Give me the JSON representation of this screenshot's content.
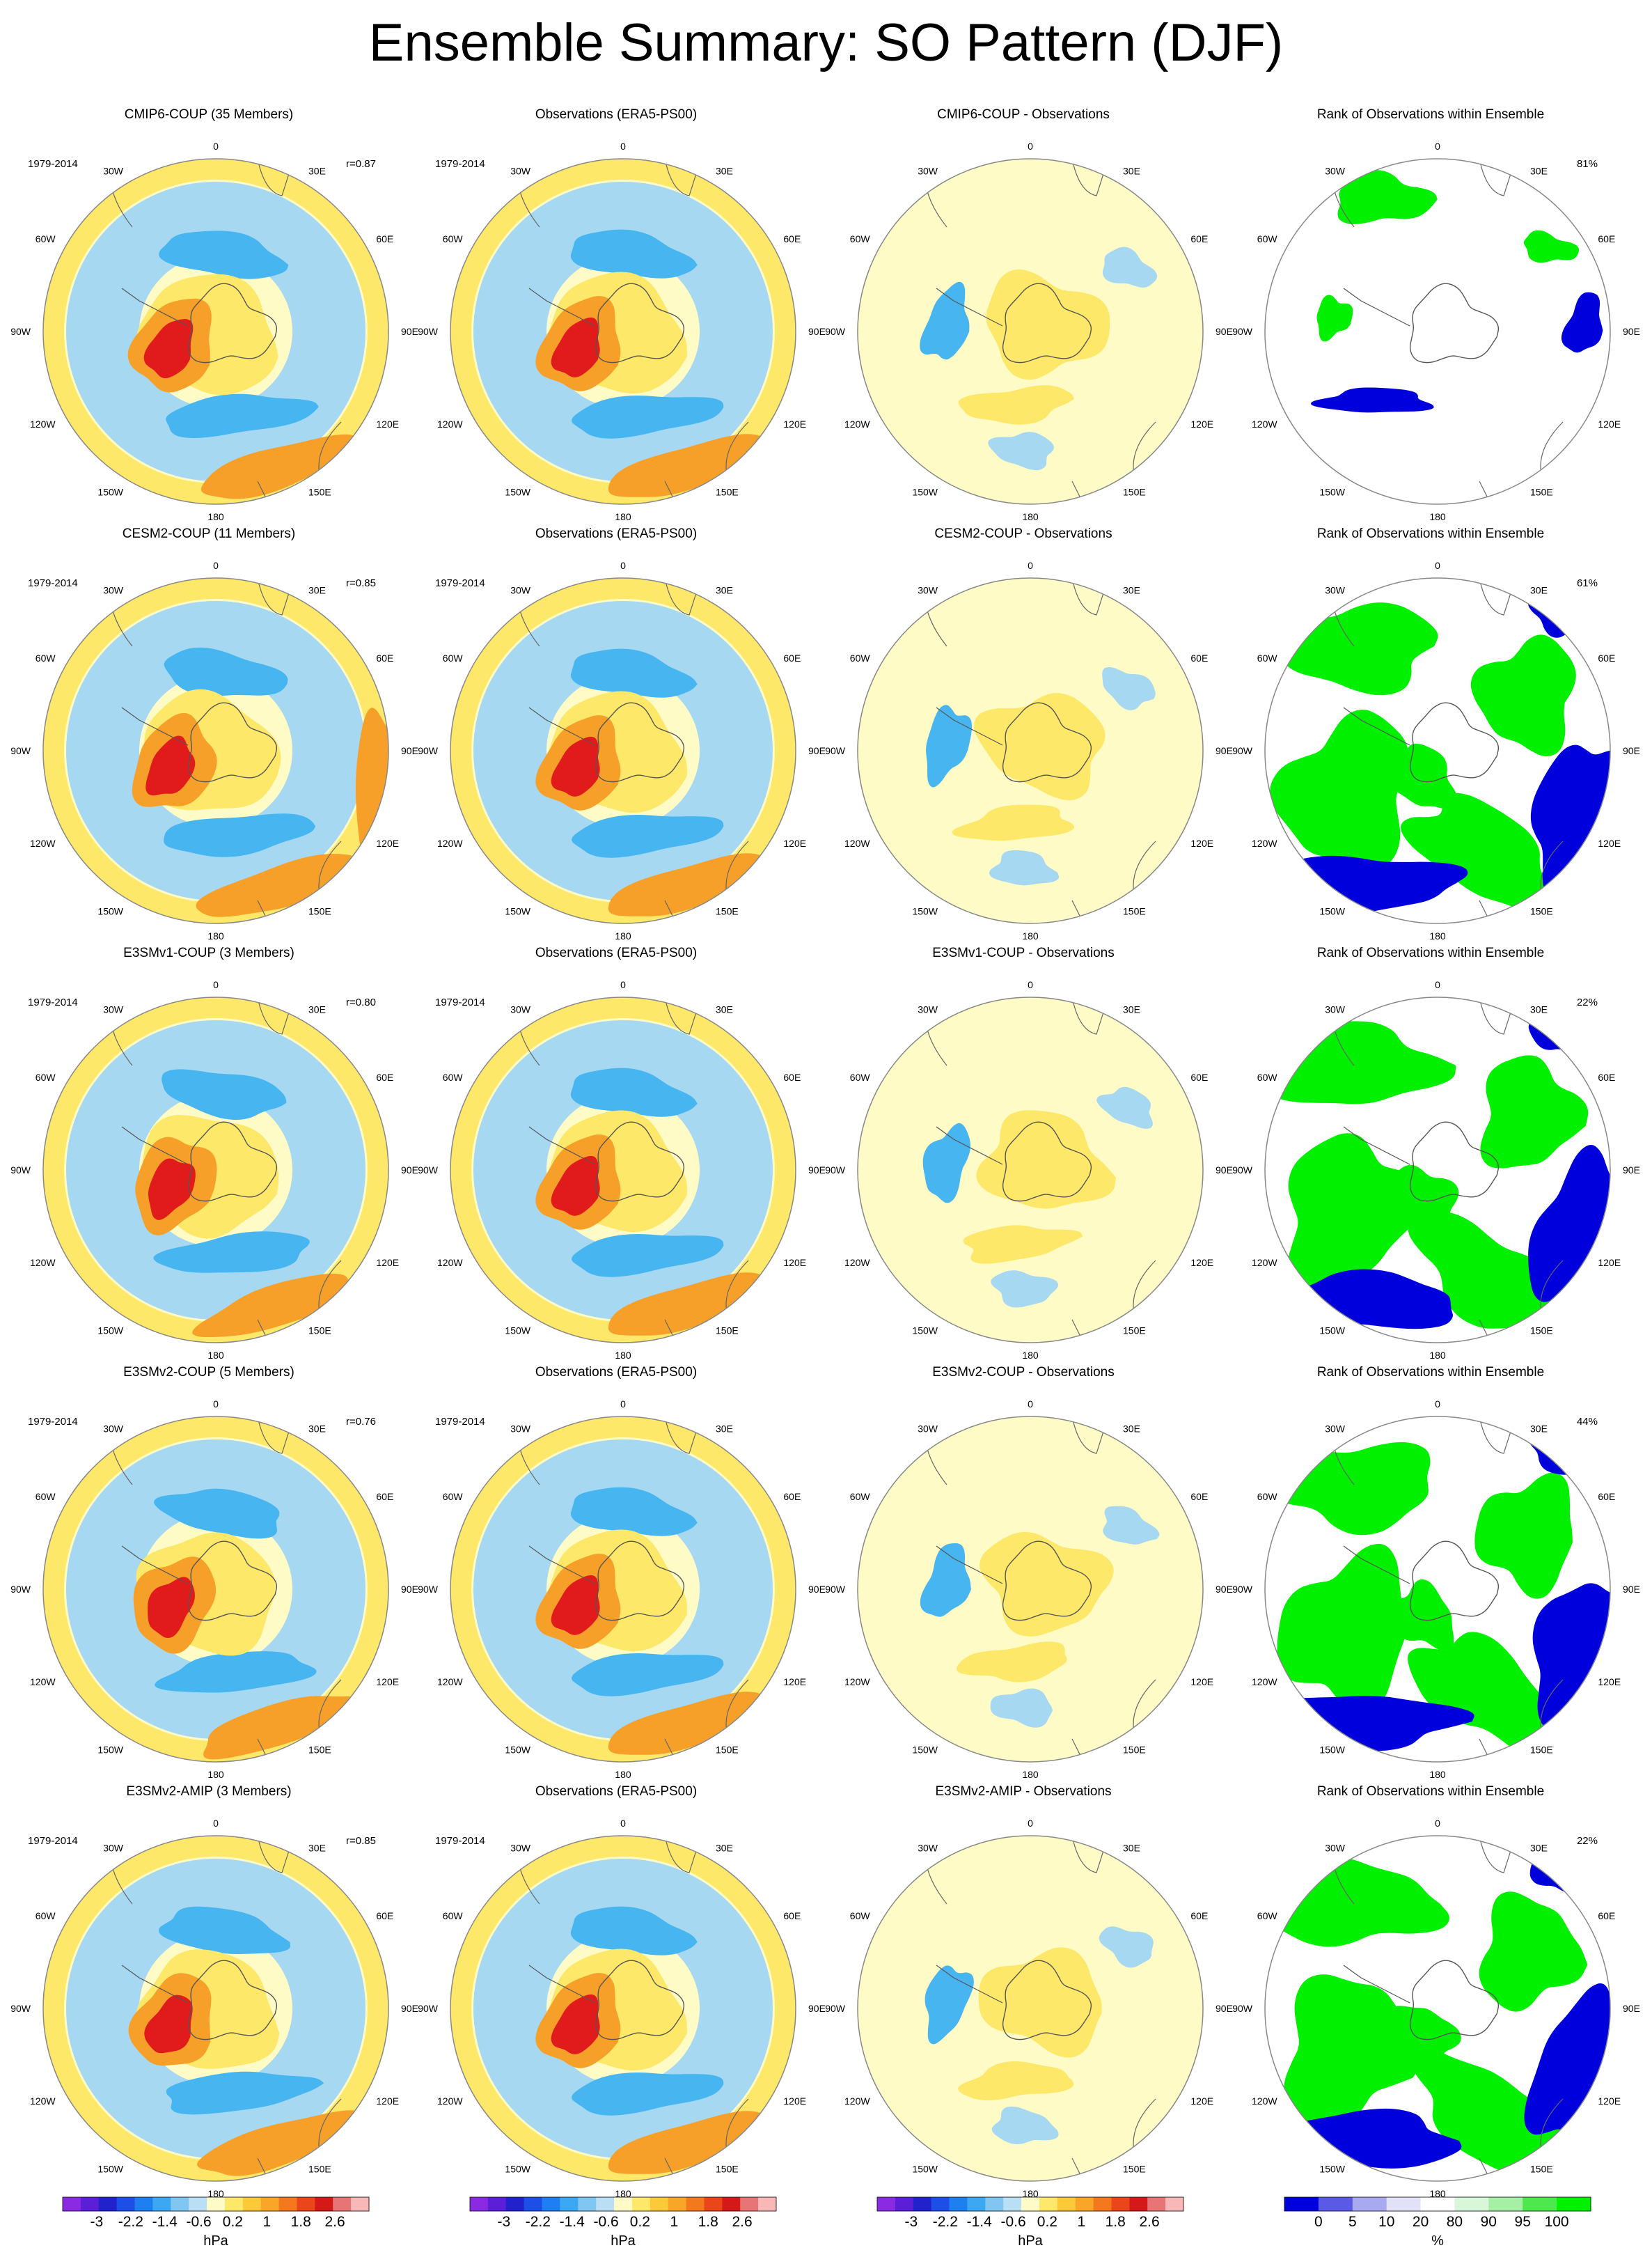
{
  "title": "Ensemble Summary: SO Pattern (DJF)",
  "period": "1979-2014",
  "longitude_labels": {
    "lon_0": "0",
    "lon_30e": "30E",
    "lon_60e": "60E",
    "lon_90e": "90E",
    "lon_120e": "120E",
    "lon_150e": "150E",
    "lon_180": "180",
    "lon_150w": "150W",
    "lon_120w": "120W",
    "lon_90w": "90W",
    "lon_60w": "60W",
    "lon_30w": "30W"
  },
  "rows": [
    {
      "ensemble": {
        "title": "CMIP6-COUP (35 Members)",
        "corr": "r=0.87"
      },
      "observations": {
        "title": "Observations (ERA5-PS00)"
      },
      "difference": {
        "title": "CMIP6-COUP - Observations"
      },
      "rank": {
        "title": "Rank of Observations within Ensemble",
        "percent": "81%"
      }
    },
    {
      "ensemble": {
        "title": "CESM2-COUP (11 Members)",
        "corr": "r=0.85"
      },
      "observations": {
        "title": "Observations (ERA5-PS00)"
      },
      "difference": {
        "title": "CESM2-COUP - Observations"
      },
      "rank": {
        "title": "Rank of Observations within Ensemble",
        "percent": "61%"
      }
    },
    {
      "ensemble": {
        "title": "E3SMv1-COUP (3 Members)",
        "corr": "r=0.80"
      },
      "observations": {
        "title": "Observations (ERA5-PS00)"
      },
      "difference": {
        "title": "E3SMv1-COUP - Observations"
      },
      "rank": {
        "title": "Rank of Observations within Ensemble",
        "percent": "22%"
      }
    },
    {
      "ensemble": {
        "title": "E3SMv2-COUP (5 Members)",
        "corr": "r=0.76"
      },
      "observations": {
        "title": "Observations (ERA5-PS00)"
      },
      "difference": {
        "title": "E3SMv2-COUP - Observations"
      },
      "rank": {
        "title": "Rank of Observations within Ensemble",
        "percent": "44%"
      }
    },
    {
      "ensemble": {
        "title": "E3SMv2-AMIP (3 Members)",
        "corr": "r=0.85"
      },
      "observations": {
        "title": "Observations (ERA5-PS00)"
      },
      "difference": {
        "title": "E3SMv2-AMIP - Observations"
      },
      "rank": {
        "title": "Rank of Observations within Ensemble",
        "percent": "22%"
      }
    }
  ],
  "slp_colorbar": {
    "units": "hPa",
    "tick_labels": [
      "-3",
      "-2.2",
      "-1.4",
      "-0.6",
      "0.2",
      "1",
      "1.8",
      "2.6"
    ],
    "colors": [
      "#8a2be2",
      "#5a1fd6",
      "#2222cc",
      "#1c4fe6",
      "#1e7ff0",
      "#3aa8f2",
      "#7fc6f2",
      "#b8dff4",
      "#fffbc6",
      "#fde86a",
      "#fcc93a",
      "#f9a52a",
      "#f4781c",
      "#e9461a",
      "#d41919",
      "#e87575",
      "#f8b8b8"
    ]
  },
  "rank_colorbar": {
    "units": "%",
    "tick_labels": [
      "0",
      "5",
      "10",
      "20",
      "80",
      "90",
      "95",
      "100"
    ],
    "colors": [
      "#0000dd",
      "#5a5ae6",
      "#a9a9f2",
      "#e1e1f8",
      "#ffffff",
      "#d8f7d8",
      "#a6f0a6",
      "#4ce84c",
      "#00f000"
    ]
  },
  "colors": {
    "slp_positive_strong": "#e11b1b",
    "slp_positive": "#f6a02a",
    "slp_weak_positive": "#fde86a",
    "slp_near_zero": "#fffbc6",
    "slp_negative": "#47b6f0",
    "slp_weak_negative": "#a6d8f2",
    "rank_high": "#00f000",
    "rank_low": "#0000dd"
  }
}
